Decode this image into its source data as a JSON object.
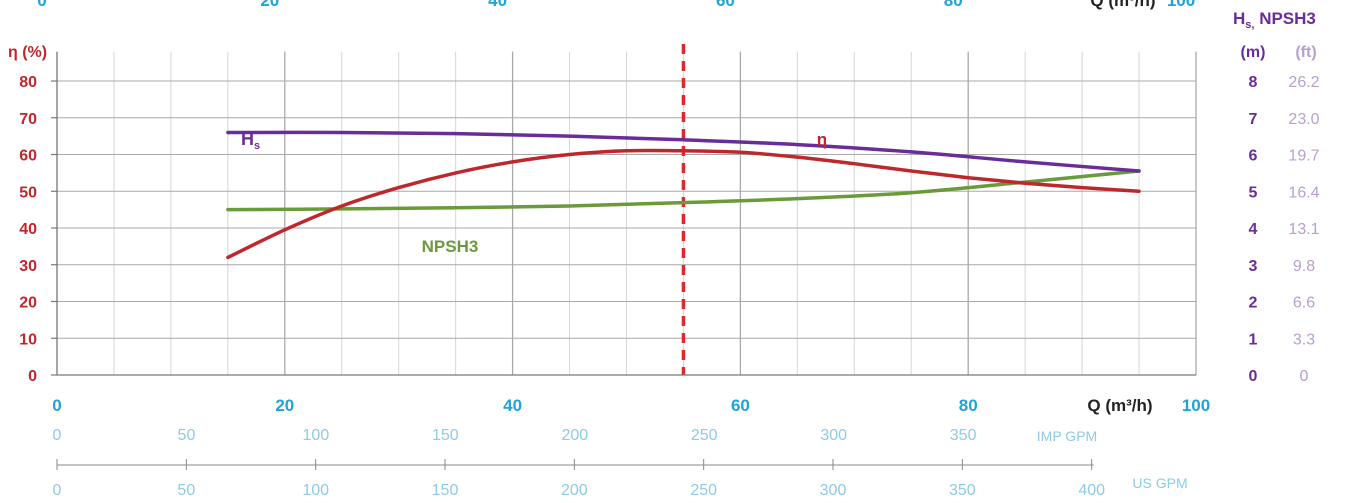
{
  "colors": {
    "eta": "#c0272d",
    "hs": "#6a2c9a",
    "npsh": "#6a9a3a",
    "q_axis": "#1fa3d8",
    "imp_gpm": "#8ecbe6",
    "us_gpm": "#8ecbe6",
    "m_axis": "#6a2c9a",
    "ft_axis": "#b7a0cf",
    "grid_major": "#a9a9a9",
    "grid_minor": "#d6d6d6",
    "marker": "#e0282e"
  },
  "chart_data": {
    "type": "line",
    "x_unit_label": "Q (m³/h)",
    "x_ticks_top": [
      "0",
      "20",
      "40",
      "60",
      "80",
      "100"
    ],
    "x_ticks_bottom": [
      "0",
      "20",
      "40",
      "60",
      "80",
      "100"
    ],
    "x_range": [
      0,
      100
    ],
    "left_axis": {
      "label": "η (%)",
      "range": [
        0,
        90
      ],
      "ticks": [
        "0",
        "10",
        "20",
        "30",
        "40",
        "50",
        "60",
        "70",
        "80"
      ]
    },
    "right_axis": {
      "title_main": "H",
      "title_sub": "s,",
      "title_rest": " NPSH3",
      "m_label": "(m)",
      "ft_label": "(ft)",
      "m_ticks": [
        "0",
        "1",
        "2",
        "3",
        "4",
        "5",
        "6",
        "7",
        "8"
      ],
      "ft_ticks": [
        "0",
        "3.3",
        "6.6",
        "9.8",
        "13.1",
        "16.4",
        "19.7",
        "23.0",
        "26.2"
      ]
    },
    "imp_gpm_axis": {
      "label": "IMP GPM",
      "ticks": [
        0,
        50,
        100,
        150,
        200,
        250,
        300,
        350
      ],
      "tick_labels": [
        "0",
        "50",
        "100",
        "150",
        "200",
        "250",
        "300",
        "350"
      ],
      "m3h_per_unit": 0.2273
    },
    "us_gpm_axis": {
      "label": "US GPM",
      "ticks": [
        0,
        50,
        100,
        150,
        200,
        250,
        300,
        350,
        400
      ],
      "tick_labels": [
        "0",
        "50",
        "100",
        "150",
        "200",
        "250",
        "300",
        "350",
        "400"
      ],
      "m3h_per_unit": 0.2271
    },
    "marker_q": 55,
    "series": [
      {
        "key": "eta",
        "name": "η",
        "axis": "left",
        "x": [
          15,
          20,
          25,
          30,
          35,
          40,
          45,
          50,
          55,
          60,
          65,
          70,
          75,
          80,
          85,
          90,
          95
        ],
        "y": [
          32,
          39.5,
          46,
          51,
          55,
          58,
          60,
          61,
          61,
          60.6,
          59.3,
          57.5,
          55.5,
          53.7,
          52.2,
          51,
          50
        ]
      },
      {
        "key": "hs",
        "name_main": "H",
        "name_sub": "s",
        "axis": "right",
        "x": [
          15,
          25,
          35,
          45,
          55,
          65,
          75,
          85,
          95
        ],
        "y": [
          6.6,
          6.6,
          6.57,
          6.5,
          6.4,
          6.27,
          6.07,
          5.8,
          5.55
        ]
      },
      {
        "key": "npsh",
        "name": "NPSH3",
        "axis": "right",
        "x": [
          15,
          25,
          35,
          45,
          55,
          65,
          75,
          85,
          95
        ],
        "y": [
          4.5,
          4.52,
          4.55,
          4.6,
          4.69,
          4.8,
          4.96,
          5.25,
          5.55
        ]
      }
    ]
  }
}
